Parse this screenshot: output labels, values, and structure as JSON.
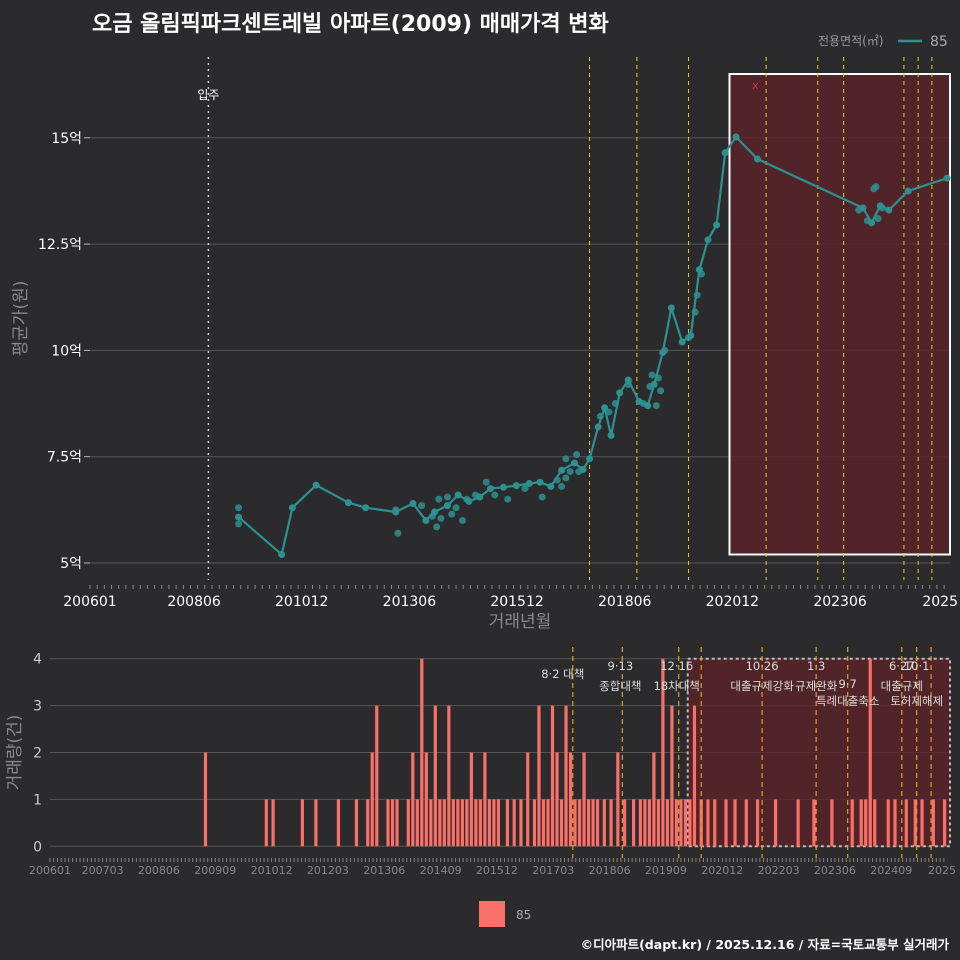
{
  "title": "오금 올림픽파크센트레빌 아파트(2009) 매매가격 변화",
  "legend": {
    "title": "전용면적(㎡)",
    "series_label": "85"
  },
  "bottom_legend_label": "85",
  "footer": "©디아파트(dapt.kr) / 2025.12.16 / 자료=국토교통부 실거래가",
  "colors": {
    "background": "#2b2b2d",
    "line": "#2e9090",
    "bar": "#f87068",
    "event_line": "#e6d21a",
    "event_line_bottom": "#e0a020",
    "shade": "#5a2328"
  },
  "chart_data": [
    {
      "type": "line",
      "title": "오금 올림픽파크센트레빌 아파트(2009) 매매가격 변화",
      "xlabel": "거래년월",
      "ylabel": "평균가(원)",
      "x_tick_labels": [
        "200601",
        "200806",
        "201012",
        "201306",
        "201512",
        "201806",
        "202012",
        "202306",
        "2025"
      ],
      "y_tick_labels": [
        "5억",
        "7.5억",
        "10억",
        "12.5억",
        "15억"
      ],
      "y_ticks": [
        5,
        7.5,
        10,
        12.5,
        15
      ],
      "xlim": [
        2006.0,
        2025.97
      ],
      "ylim": [
        4.6,
        16.9
      ],
      "ylabel_units": "억",
      "annotation": {
        "label": "입주",
        "x": 2008.75
      },
      "marker_label": "x",
      "event_lines": [
        2017.6,
        2018.7,
        2019.9,
        2021.7,
        2022.9,
        2023.5,
        2024.9,
        2025.23,
        2025.55
      ],
      "shaded_region": {
        "x_start": 2020.85,
        "x_end": 2025.97,
        "y_start": 5.2,
        "y_end": 16.5
      },
      "series": [
        {
          "name": "85",
          "points": [
            [
              2009.45,
              6.08
            ],
            [
              2010.45,
              5.2
            ],
            [
              2010.7,
              6.3
            ],
            [
              2011.25,
              6.83
            ],
            [
              2012.0,
              6.42
            ],
            [
              2012.4,
              6.3
            ],
            [
              2013.1,
              6.2
            ],
            [
              2013.5,
              6.4
            ],
            [
              2013.8,
              6.0
            ],
            [
              2014.0,
              6.2
            ],
            [
              2014.3,
              6.35
            ],
            [
              2014.55,
              6.6
            ],
            [
              2014.8,
              6.45
            ],
            [
              2015.05,
              6.55
            ],
            [
              2015.3,
              6.75
            ],
            [
              2015.6,
              6.78
            ],
            [
              2015.9,
              6.82
            ],
            [
              2016.2,
              6.87
            ],
            [
              2016.45,
              6.9
            ],
            [
              2016.7,
              6.8
            ],
            [
              2016.95,
              7.18
            ],
            [
              2017.25,
              7.35
            ],
            [
              2017.45,
              7.2
            ],
            [
              2017.6,
              7.45
            ],
            [
              2017.8,
              8.2
            ],
            [
              2017.95,
              8.65
            ],
            [
              2018.1,
              8.0
            ],
            [
              2018.3,
              9.0
            ],
            [
              2018.5,
              9.3
            ],
            [
              2018.75,
              8.8
            ],
            [
              2018.95,
              8.7
            ],
            [
              2019.1,
              9.2
            ],
            [
              2019.3,
              9.95
            ],
            [
              2019.5,
              11.0
            ],
            [
              2019.75,
              10.2
            ],
            [
              2019.95,
              10.35
            ],
            [
              2020.15,
              11.9
            ],
            [
              2020.35,
              12.6
            ],
            [
              2020.55,
              12.95
            ],
            [
              2020.75,
              14.65
            ],
            [
              2021.0,
              15.02
            ],
            [
              2021.5,
              14.5
            ],
            [
              2023.95,
              13.35
            ],
            [
              2024.15,
              13.0
            ],
            [
              2024.35,
              13.4
            ],
            [
              2024.55,
              13.3
            ],
            [
              2025.0,
              13.75
            ],
            [
              2025.9,
              14.05
            ]
          ]
        }
      ],
      "scatter": [
        [
          2009.45,
          6.3
        ],
        [
          2009.45,
          5.92
        ],
        [
          2013.1,
          6.25
        ],
        [
          2013.15,
          5.7
        ],
        [
          2013.7,
          6.35
        ],
        [
          2013.95,
          6.1
        ],
        [
          2014.05,
          5.85
        ],
        [
          2014.1,
          6.5
        ],
        [
          2014.15,
          6.05
        ],
        [
          2014.3,
          6.55
        ],
        [
          2014.4,
          6.15
        ],
        [
          2014.5,
          6.3
        ],
        [
          2014.65,
          6.0
        ],
        [
          2014.75,
          6.5
        ],
        [
          2014.95,
          6.6
        ],
        [
          2015.2,
          6.9
        ],
        [
          2015.4,
          6.6
        ],
        [
          2015.7,
          6.5
        ],
        [
          2016.1,
          6.75
        ],
        [
          2016.5,
          6.55
        ],
        [
          2016.85,
          6.95
        ],
        [
          2016.95,
          6.8
        ],
        [
          2017.05,
          7.0
        ],
        [
          2017.05,
          7.45
        ],
        [
          2017.15,
          7.15
        ],
        [
          2017.3,
          7.55
        ],
        [
          2017.35,
          7.15
        ],
        [
          2017.85,
          8.45
        ],
        [
          2018.05,
          8.55
        ],
        [
          2018.2,
          8.75
        ],
        [
          2018.5,
          9.2
        ],
        [
          2018.85,
          8.75
        ],
        [
          2019.0,
          9.15
        ],
        [
          2019.05,
          9.42
        ],
        [
          2019.15,
          8.7
        ],
        [
          2019.2,
          9.35
        ],
        [
          2019.25,
          9.05
        ],
        [
          2019.35,
          10.0
        ],
        [
          2019.9,
          10.3
        ],
        [
          2020.05,
          10.9
        ],
        [
          2020.1,
          11.3
        ],
        [
          2020.2,
          11.8
        ],
        [
          2023.85,
          13.3
        ],
        [
          2024.05,
          13.05
        ],
        [
          2024.2,
          13.8
        ],
        [
          2024.25,
          13.85
        ],
        [
          2024.3,
          13.1
        ],
        [
          2024.4,
          13.35
        ]
      ]
    },
    {
      "type": "bar",
      "xlabel": "",
      "ylabel": "거래량(건)",
      "x_tick_labels": [
        "200601",
        "200703",
        "200806",
        "200909",
        "201012",
        "201203",
        "201306",
        "201409",
        "201512",
        "201703",
        "201806",
        "201909",
        "202012",
        "202203",
        "202306",
        "202409",
        "2025"
      ],
      "y_ticks": [
        0,
        1,
        2,
        3,
        4
      ],
      "xlim": [
        2006.0,
        2025.97
      ],
      "ylim": [
        -0.25,
        4.25
      ],
      "shaded_region": {
        "x_start": 2020.15,
        "x_end": 2025.97,
        "y_start": 0,
        "y_end": 4.0
      },
      "events": [
        {
          "x": 2017.6,
          "labels": [
            "8·2 대책"
          ]
        },
        {
          "x": 2018.7,
          "labels": [
            "9·13",
            "종합대책"
          ]
        },
        {
          "x": 2019.95,
          "labels": [
            "12·16",
            "18차대책"
          ]
        },
        {
          "x": 2020.45,
          "labels": []
        },
        {
          "x": 2021.8,
          "labels": [
            "10·26",
            "대출규제강화"
          ]
        },
        {
          "x": 2023.0,
          "labels": [
            "1·3",
            "규제완화"
          ]
        },
        {
          "x": 2023.7,
          "labels": [
            "9·7",
            "특례대출축소"
          ]
        },
        {
          "x": 2024.9,
          "labels": [
            "6·27",
            "대출규제"
          ]
        },
        {
          "x": 2025.23,
          "labels": [
            "10·1",
            "토허제해제"
          ]
        },
        {
          "x": 2025.55,
          "labels": []
        }
      ],
      "series": [
        {
          "name": "85",
          "points": [
            [
              2009.45,
              2
            ],
            [
              2010.8,
              1
            ],
            [
              2010.95,
              1
            ],
            [
              2011.6,
              1
            ],
            [
              2011.9,
              1
            ],
            [
              2012.4,
              1
            ],
            [
              2012.8,
              1
            ],
            [
              2013.05,
              1
            ],
            [
              2013.15,
              2
            ],
            [
              2013.25,
              3
            ],
            [
              2013.5,
              1
            ],
            [
              2013.6,
              1
            ],
            [
              2013.7,
              1
            ],
            [
              2013.95,
              1
            ],
            [
              2014.05,
              2
            ],
            [
              2014.15,
              1
            ],
            [
              2014.25,
              4
            ],
            [
              2014.35,
              2
            ],
            [
              2014.45,
              1
            ],
            [
              2014.55,
              3
            ],
            [
              2014.65,
              1
            ],
            [
              2014.75,
              1
            ],
            [
              2014.85,
              3
            ],
            [
              2014.95,
              1
            ],
            [
              2015.05,
              1
            ],
            [
              2015.15,
              1
            ],
            [
              2015.25,
              1
            ],
            [
              2015.35,
              2
            ],
            [
              2015.45,
              1
            ],
            [
              2015.55,
              1
            ],
            [
              2015.65,
              2
            ],
            [
              2015.75,
              1
            ],
            [
              2015.85,
              1
            ],
            [
              2015.95,
              1
            ],
            [
              2016.15,
              1
            ],
            [
              2016.3,
              1
            ],
            [
              2016.45,
              1
            ],
            [
              2016.6,
              2
            ],
            [
              2016.75,
              1
            ],
            [
              2016.85,
              3
            ],
            [
              2016.95,
              1
            ],
            [
              2017.05,
              1
            ],
            [
              2017.15,
              3
            ],
            [
              2017.25,
              2
            ],
            [
              2017.35,
              1
            ],
            [
              2017.45,
              3
            ],
            [
              2017.55,
              2
            ],
            [
              2017.65,
              1
            ],
            [
              2017.75,
              1
            ],
            [
              2017.85,
              2
            ],
            [
              2017.95,
              1
            ],
            [
              2018.05,
              1
            ],
            [
              2018.15,
              1
            ],
            [
              2018.3,
              1
            ],
            [
              2018.45,
              1
            ],
            [
              2018.6,
              2
            ],
            [
              2018.75,
              1
            ],
            [
              2018.95,
              1
            ],
            [
              2019.1,
              1
            ],
            [
              2019.2,
              1
            ],
            [
              2019.3,
              1
            ],
            [
              2019.4,
              2
            ],
            [
              2019.5,
              1
            ],
            [
              2019.6,
              4
            ],
            [
              2019.7,
              1
            ],
            [
              2019.8,
              3
            ],
            [
              2019.9,
              1
            ],
            [
              2020.0,
              1
            ],
            [
              2020.1,
              1
            ],
            [
              2020.2,
              1
            ],
            [
              2020.3,
              3
            ],
            [
              2020.45,
              1
            ],
            [
              2020.6,
              1
            ],
            [
              2020.75,
              1
            ],
            [
              2021.0,
              1
            ],
            [
              2021.2,
              1
            ],
            [
              2021.45,
              1
            ],
            [
              2021.7,
              1
            ],
            [
              2022.1,
              1
            ],
            [
              2022.6,
              1
            ],
            [
              2022.95,
              1
            ],
            [
              2023.35,
              1
            ],
            [
              2023.8,
              1
            ],
            [
              2024.0,
              1
            ],
            [
              2024.1,
              1
            ],
            [
              2024.2,
              4
            ],
            [
              2024.3,
              1
            ],
            [
              2024.6,
              1
            ],
            [
              2024.75,
              1
            ],
            [
              2025.0,
              1
            ],
            [
              2025.2,
              1
            ],
            [
              2025.35,
              1
            ],
            [
              2025.6,
              1
            ],
            [
              2025.85,
              1
            ]
          ]
        }
      ]
    }
  ]
}
